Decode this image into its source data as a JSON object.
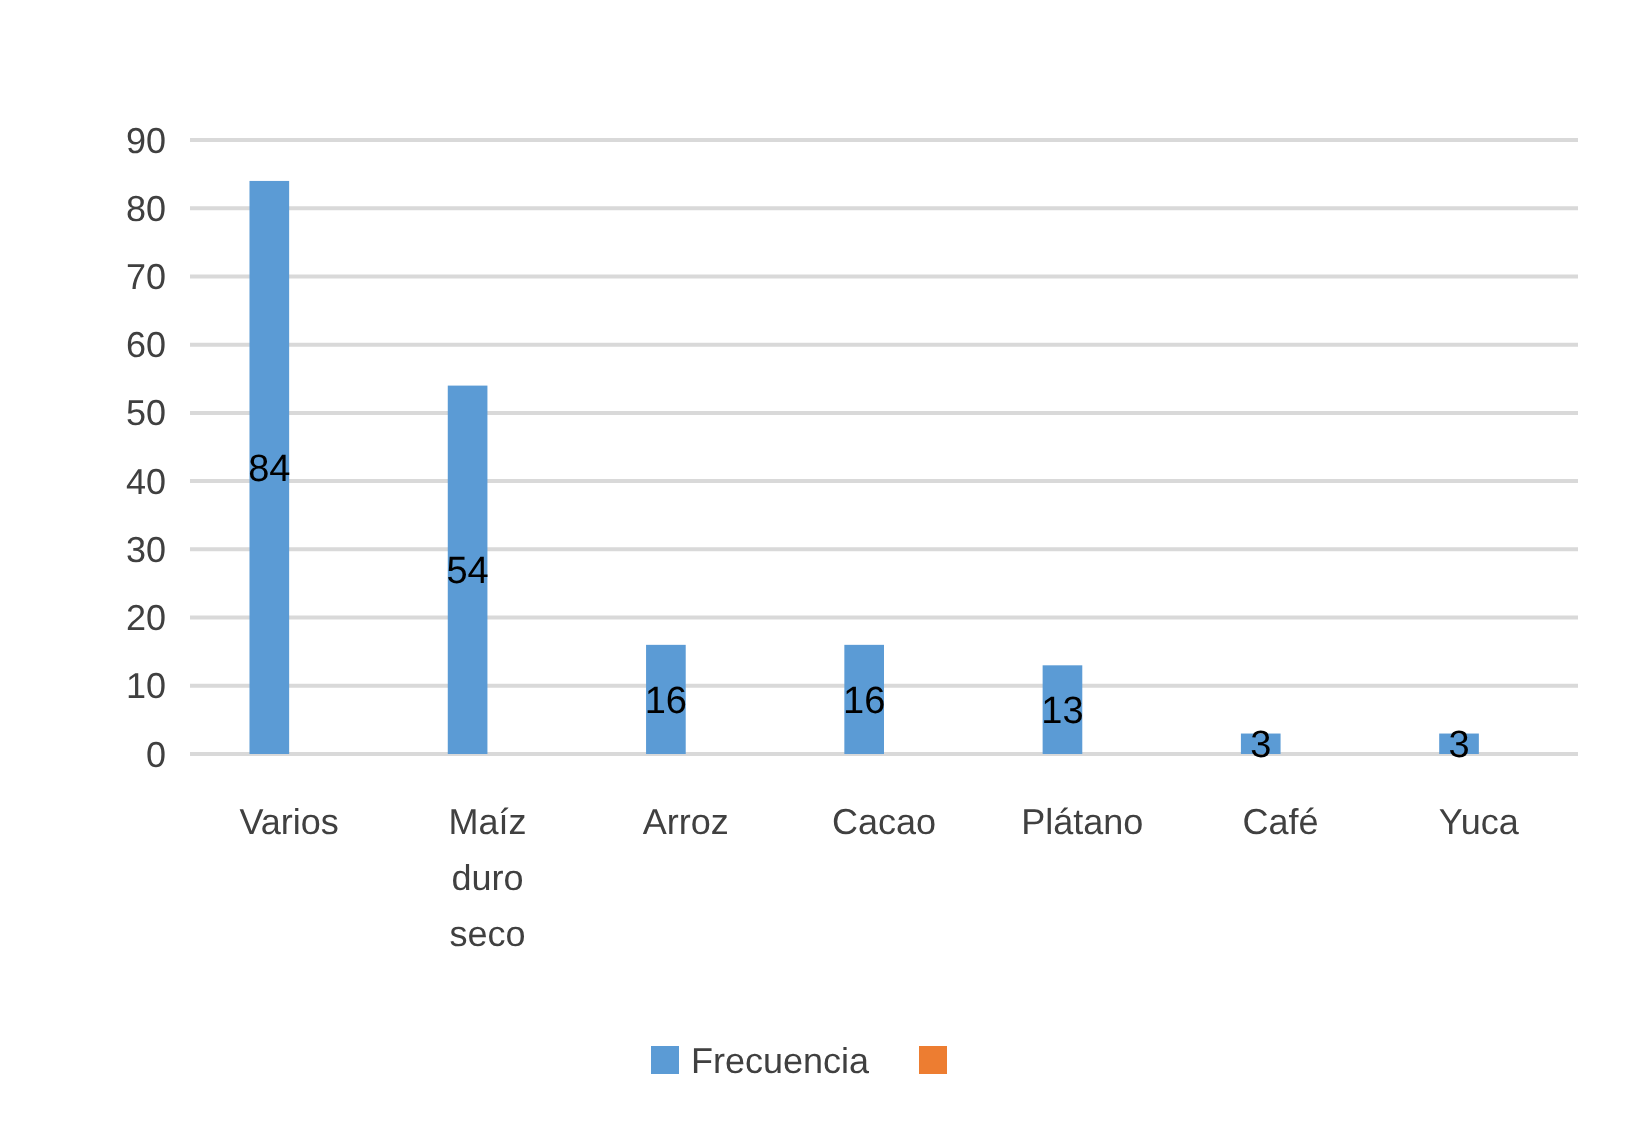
{
  "chart_data": {
    "type": "bar",
    "categories": [
      "Varios",
      "Maíz duro seco",
      "Arroz",
      "Cacao",
      "Plátano",
      "Café",
      "Yuca"
    ],
    "series": [
      {
        "name": "Frecuencia",
        "color": "#5b9bd5",
        "values": [
          84,
          54,
          16,
          16,
          13,
          3,
          3
        ]
      },
      {
        "color": "#ed7d31",
        "values": [
          null,
          null,
          null,
          null,
          null,
          null,
          null
        ]
      }
    ],
    "ylim": [
      0,
      90
    ],
    "yticks": [
      0,
      10,
      20,
      30,
      40,
      50,
      60,
      70,
      80,
      90
    ],
    "grid": "y",
    "legend": "bottom",
    "data_labels": true
  }
}
